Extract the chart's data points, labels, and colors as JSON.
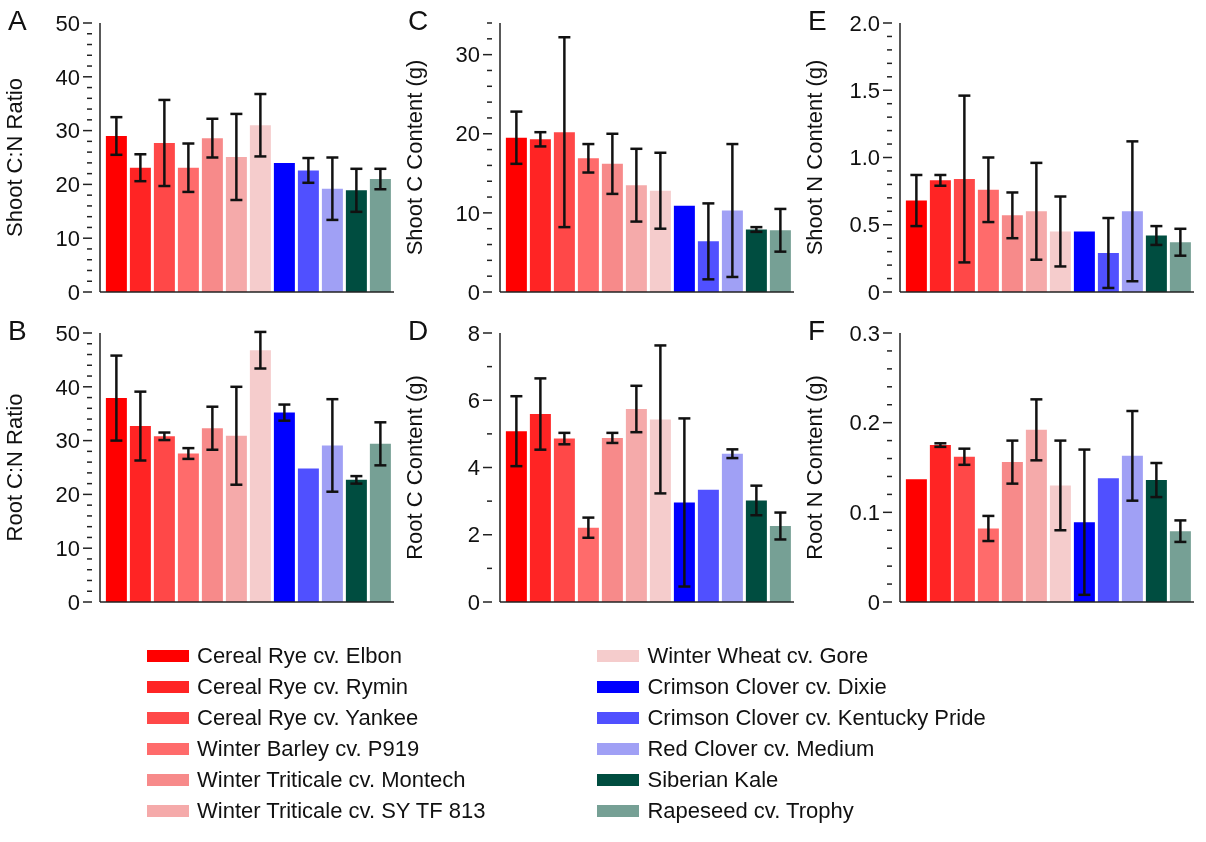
{
  "chart_data": [
    {
      "type": "bar",
      "title": "A",
      "ylabel": "Shoot C:N Ratio",
      "categories": [
        null
      ],
      "tick_labels": "y",
      "ylim": [
        0,
        50
      ],
      "yticks": [
        0,
        {
          "value": 2,
          "label": null
        },
        {
          "value": 4,
          "label": null
        },
        {
          "value": 6,
          "label": null
        },
        {
          "value": 8,
          "label": null
        },
        10,
        {
          "value": 12,
          "label": null
        },
        {
          "value": 14,
          "label": null
        },
        {
          "value": 16,
          "label": null
        },
        {
          "value": 18,
          "label": null
        },
        20,
        {
          "value": 22,
          "label": null
        },
        {
          "value": 24,
          "label": null
        },
        {
          "value": 26,
          "label": null
        },
        {
          "value": 28,
          "label": null
        },
        30,
        {
          "value": 32,
          "label": null
        },
        {
          "value": 34,
          "label": null
        },
        {
          "value": 36,
          "label": null
        },
        {
          "value": 38,
          "label": null
        },
        40,
        {
          "value": 42,
          "label": null
        },
        {
          "value": 44,
          "label": null
        },
        {
          "value": 46,
          "label": null
        },
        {
          "value": 48,
          "label": null
        },
        50
      ],
      "series": [
        {
          "color": "#ff0000",
          "values": [
            29.0
          ],
          "errors": [
            3.5
          ]
        },
        {
          "color": "#ff2424",
          "values": [
            23.1
          ],
          "errors": [
            2.5
          ]
        },
        {
          "color": "#ff4848",
          "values": [
            27.7
          ],
          "errors": [
            8
          ]
        },
        {
          "color": "#ff6b6b",
          "values": [
            23.1
          ],
          "errors": [
            4.5
          ]
        },
        {
          "color": "#f78a8a",
          "values": [
            28.6
          ],
          "errors": [
            3.6
          ]
        },
        {
          "color": "#f5aaaa",
          "values": [
            25.1
          ],
          "errors": [
            8
          ]
        },
        {
          "color": "#f5cccc",
          "values": [
            31.0
          ],
          "errors": [
            5.8
          ]
        },
        {
          "color": "#0000ff",
          "values": [
            24.0
          ],
          "errors": [
            null
          ]
        },
        {
          "color": "#5050ff",
          "values": [
            22.6
          ],
          "errors": [
            2.3
          ]
        },
        {
          "color": "#a0a0f5",
          "values": [
            19.2
          ],
          "errors": [
            5.8
          ]
        },
        {
          "color": "#004d40",
          "values": [
            18.9
          ],
          "errors": [
            4
          ]
        },
        {
          "color": "#76a095",
          "values": [
            21.0
          ],
          "errors": [
            1.9
          ]
        }
      ]
    },
    {
      "type": "bar",
      "title": "C",
      "ylabel": "Shoot C Content (g)",
      "categories": [
        null
      ],
      "tick_labels": "y",
      "ylim": [
        0,
        34
      ],
      "yticks": [
        0,
        {
          "value": 2,
          "label": null
        },
        {
          "value": 4,
          "label": null
        },
        {
          "value": 6,
          "label": null
        },
        {
          "value": 8,
          "label": null
        },
        10,
        {
          "value": 12,
          "label": null
        },
        {
          "value": 14,
          "label": null
        },
        {
          "value": 16,
          "label": null
        },
        {
          "value": 18,
          "label": null
        },
        20,
        {
          "value": 22,
          "label": null
        },
        {
          "value": 24,
          "label": null
        },
        {
          "value": 26,
          "label": null
        },
        {
          "value": 28,
          "label": null
        },
        30,
        {
          "value": 32,
          "label": null
        },
        {
          "value": 34,
          "label": null
        }
      ],
      "series": [
        {
          "color": "#ff0000",
          "values": [
            19.5
          ],
          "errors": [
            3.3
          ]
        },
        {
          "color": "#ff2424",
          "values": [
            19.3
          ],
          "errors": [
            0.9
          ]
        },
        {
          "color": "#ff4848",
          "values": [
            20.2
          ],
          "errors": [
            12
          ]
        },
        {
          "color": "#ff6b6b",
          "values": [
            16.9
          ],
          "errors": [
            1.8
          ]
        },
        {
          "color": "#f78a8a",
          "values": [
            16.2
          ],
          "errors": [
            3.8
          ]
        },
        {
          "color": "#f5aaaa",
          "values": [
            13.5
          ],
          "errors": [
            4.6
          ]
        },
        {
          "color": "#f5cccc",
          "values": [
            12.8
          ],
          "errors": [
            4.8
          ]
        },
        {
          "color": "#0000ff",
          "values": [
            10.9
          ],
          "errors": [
            null
          ]
        },
        {
          "color": "#5050ff",
          "values": [
            6.4
          ],
          "errors": [
            4.8
          ]
        },
        {
          "color": "#a0a0f5",
          "values": [
            10.3
          ],
          "errors": [
            8.4
          ]
        },
        {
          "color": "#004d40",
          "values": [
            7.9
          ],
          "errors": [
            0.3
          ]
        },
        {
          "color": "#76a095",
          "values": [
            7.8
          ],
          "errors": [
            2.7
          ]
        }
      ]
    },
    {
      "type": "bar",
      "title": "E",
      "ylabel": "Shoot N Content (g)",
      "categories": [
        null
      ],
      "tick_labels": "y",
      "ylim": [
        0,
        2
      ],
      "yticks": [
        0,
        {
          "value": 0.1,
          "label": null
        },
        {
          "value": 0.2,
          "label": null
        },
        {
          "value": 0.3,
          "label": null
        },
        {
          "value": 0.4,
          "label": null
        },
        0.5,
        {
          "value": 0.6,
          "label": null
        },
        {
          "value": 0.7,
          "label": null
        },
        {
          "value": 0.8,
          "label": null
        },
        {
          "value": 0.9,
          "label": null
        },
        {
          "value": 1,
          "label": "1.0"
        },
        {
          "value": 1.1,
          "label": null
        },
        {
          "value": 1.2,
          "label": null
        },
        {
          "value": 1.3,
          "label": null
        },
        {
          "value": 1.4,
          "label": null
        },
        1.5,
        {
          "value": 1.6,
          "label": null
        },
        {
          "value": 1.7,
          "label": null
        },
        {
          "value": 1.8,
          "label": null
        },
        {
          "value": 1.9,
          "label": null
        },
        {
          "value": 2,
          "label": "2.0"
        }
      ],
      "series": [
        {
          "color": "#ff0000",
          "values": [
            0.68
          ],
          "errors": [
            0.19
          ]
        },
        {
          "color": "#ff2424",
          "values": [
            0.83
          ],
          "errors": [
            0.04
          ]
        },
        {
          "color": "#ff4848",
          "values": [
            0.84
          ],
          "errors": [
            0.62
          ]
        },
        {
          "color": "#ff6b6b",
          "values": [
            0.76
          ],
          "errors": [
            0.24
          ]
        },
        {
          "color": "#f78a8a",
          "values": [
            0.57
          ],
          "errors": [
            0.17
          ]
        },
        {
          "color": "#f5aaaa",
          "values": [
            0.6
          ],
          "errors": [
            0.36
          ]
        },
        {
          "color": "#f5cccc",
          "values": [
            0.45
          ],
          "errors": [
            0.26
          ]
        },
        {
          "color": "#0000ff",
          "values": [
            0.45
          ],
          "errors": [
            null
          ]
        },
        {
          "color": "#5050ff",
          "values": [
            0.29
          ],
          "errors": [
            0.26
          ]
        },
        {
          "color": "#a0a0f5",
          "values": [
            0.6
          ],
          "errors": [
            0.52
          ]
        },
        {
          "color": "#004d40",
          "values": [
            0.42
          ],
          "errors": [
            0.07
          ]
        },
        {
          "color": "#76a095",
          "values": [
            0.37
          ],
          "errors": [
            0.1
          ]
        }
      ]
    },
    {
      "type": "bar",
      "title": "B",
      "ylabel": "Root C:N Ratio",
      "categories": [
        null
      ],
      "tick_labels": "y",
      "ylim": [
        0,
        50
      ],
      "yticks": [
        0,
        {
          "value": 2,
          "label": null
        },
        {
          "value": 4,
          "label": null
        },
        {
          "value": 6,
          "label": null
        },
        {
          "value": 8,
          "label": null
        },
        10,
        {
          "value": 12,
          "label": null
        },
        {
          "value": 14,
          "label": null
        },
        {
          "value": 16,
          "label": null
        },
        {
          "value": 18,
          "label": null
        },
        20,
        {
          "value": 22,
          "label": null
        },
        {
          "value": 24,
          "label": null
        },
        {
          "value": 26,
          "label": null
        },
        {
          "value": 28,
          "label": null
        },
        30,
        {
          "value": 32,
          "label": null
        },
        {
          "value": 34,
          "label": null
        },
        {
          "value": 36,
          "label": null
        },
        {
          "value": 38,
          "label": null
        },
        40,
        {
          "value": 42,
          "label": null
        },
        {
          "value": 44,
          "label": null
        },
        {
          "value": 46,
          "label": null
        },
        {
          "value": 48,
          "label": null
        },
        50
      ],
      "series": [
        {
          "color": "#ff0000",
          "values": [
            37.9
          ],
          "errors": [
            7.9
          ]
        },
        {
          "color": "#ff2424",
          "values": [
            32.7
          ],
          "errors": [
            6.4
          ]
        },
        {
          "color": "#ff4848",
          "values": [
            30.8
          ],
          "errors": [
            0.7
          ]
        },
        {
          "color": "#ff6b6b",
          "values": [
            27.6
          ],
          "errors": [
            1
          ]
        },
        {
          "color": "#f78a8a",
          "values": [
            32.3
          ],
          "errors": [
            4
          ]
        },
        {
          "color": "#f5aaaa",
          "values": [
            30.9
          ],
          "errors": [
            9.1
          ]
        },
        {
          "color": "#f5cccc",
          "values": [
            46.8
          ],
          "errors": [
            3.4
          ]
        },
        {
          "color": "#0000ff",
          "values": [
            35.2
          ],
          "errors": [
            1.5
          ]
        },
        {
          "color": "#5050ff",
          "values": [
            24.8
          ],
          "errors": [
            null
          ]
        },
        {
          "color": "#a0a0f5",
          "values": [
            29.1
          ],
          "errors": [
            8.6
          ]
        },
        {
          "color": "#004d40",
          "values": [
            22.7
          ],
          "errors": [
            0.7
          ]
        },
        {
          "color": "#76a095",
          "values": [
            29.4
          ],
          "errors": [
            4
          ]
        }
      ]
    },
    {
      "type": "bar",
      "title": "D",
      "ylabel": "Root C Content (g)",
      "categories": [
        null
      ],
      "tick_labels": "y",
      "ylim": [
        0,
        8
      ],
      "legend": "bottom",
      "yticks": [
        0,
        {
          "value": 1,
          "label": null
        },
        2,
        {
          "value": 3,
          "label": null
        },
        4,
        {
          "value": 5,
          "label": null
        },
        6,
        {
          "value": 7,
          "label": null
        },
        8
      ],
      "series": [
        {
          "name": "Cereal Rye cv. Elbon",
          "color": "#ff0000",
          "values": [
            5.08
          ],
          "errors": [
            1.04
          ]
        },
        {
          "name": "Cereal Rye cv. Rymin",
          "color": "#ff2424",
          "values": [
            5.59
          ],
          "errors": [
            1.06
          ]
        },
        {
          "name": "Cereal Rye cv. Yankee",
          "color": "#ff4848",
          "values": [
            4.86
          ],
          "errors": [
            0.17
          ]
        },
        {
          "name": "Winter Barley cv. P919",
          "color": "#ff6b6b",
          "values": [
            2.21
          ],
          "errors": [
            0.3
          ]
        },
        {
          "name": "Winter Triticale cv. Montech",
          "color": "#f78a8a",
          "values": [
            4.88
          ],
          "errors": [
            0.15
          ]
        },
        {
          "name": "Winter Triticale cv. SY TF 813",
          "color": "#f5aaaa",
          "values": [
            5.74
          ],
          "errors": [
            0.69
          ]
        },
        {
          "name": "Winter Wheat cv. Gore",
          "color": "#f5cccc",
          "values": [
            5.43
          ],
          "errors": [
            2.2
          ]
        },
        {
          "name": "Crimson Clover cv. Dixie",
          "color": "#0000ff",
          "values": [
            2.96
          ],
          "errors": [
            2.5
          ]
        },
        {
          "name": "Crimson Clover cv. Kentucky Pride",
          "color": "#5050ff",
          "values": [
            3.34
          ],
          "errors": [
            null
          ]
        },
        {
          "name": "Red Clover cv. Medium",
          "color": "#a0a0f5",
          "values": [
            4.41
          ],
          "errors": [
            0.13
          ]
        },
        {
          "name": "Siberian Kale",
          "color": "#004d40",
          "values": [
            3.02
          ],
          "errors": [
            0.44
          ]
        },
        {
          "name": "Rapeseed cv. Trophy",
          "color": "#76a095",
          "values": [
            2.26
          ],
          "errors": [
            0.4
          ]
        }
      ]
    },
    {
      "type": "bar",
      "title": "F",
      "ylabel": "Root N Content (g)",
      "categories": [
        null
      ],
      "tick_labels": "y",
      "ylim": [
        0,
        0.3
      ],
      "yticks": [
        0,
        {
          "value": 0.02,
          "label": null
        },
        {
          "value": 0.04,
          "label": null
        },
        {
          "value": 0.06,
          "label": null
        },
        {
          "value": 0.08,
          "label": null
        },
        0.1,
        {
          "value": 0.12,
          "label": null
        },
        {
          "value": 0.14,
          "label": null
        },
        {
          "value": 0.16,
          "label": null
        },
        {
          "value": 0.18,
          "label": null
        },
        0.2,
        {
          "value": 0.22,
          "label": null
        },
        {
          "value": 0.24,
          "label": null
        },
        {
          "value": 0.26,
          "label": null
        },
        {
          "value": 0.28,
          "label": null
        },
        0.3
      ],
      "series": [
        {
          "color": "#ff0000",
          "values": [
            0.137
          ],
          "errors": [
            null
          ]
        },
        {
          "color": "#ff2424",
          "values": [
            0.175
          ],
          "errors": [
            0.002
          ]
        },
        {
          "color": "#ff4848",
          "values": [
            0.162
          ],
          "errors": [
            0.009
          ]
        },
        {
          "color": "#ff6b6b",
          "values": [
            0.082
          ],
          "errors": [
            0.014
          ]
        },
        {
          "color": "#f78a8a",
          "values": [
            0.156
          ],
          "errors": [
            0.024
          ]
        },
        {
          "color": "#f5aaaa",
          "values": [
            0.192
          ],
          "errors": [
            0.034
          ]
        },
        {
          "color": "#f5cccc",
          "values": [
            0.13
          ],
          "errors": [
            0.05
          ]
        },
        {
          "color": "#0000ff",
          "values": [
            0.089
          ],
          "errors": [
            0.081
          ]
        },
        {
          "color": "#5050ff",
          "values": [
            0.138
          ],
          "errors": [
            null
          ]
        },
        {
          "color": "#a0a0f5",
          "values": [
            0.163
          ],
          "errors": [
            0.05
          ]
        },
        {
          "color": "#004d40",
          "values": [
            0.136
          ],
          "errors": [
            0.019
          ]
        },
        {
          "color": "#76a095",
          "values": [
            0.079
          ],
          "errors": [
            0.012
          ]
        }
      ]
    }
  ]
}
